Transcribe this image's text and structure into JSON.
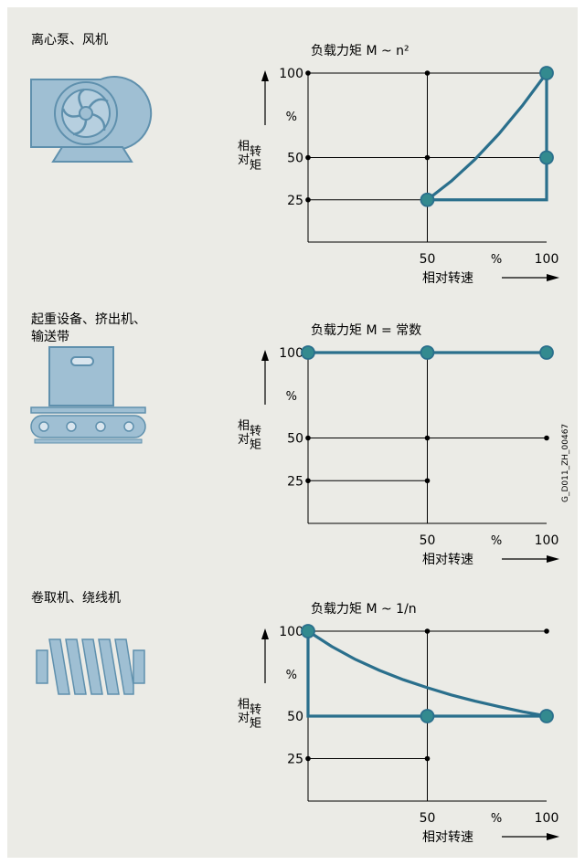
{
  "colors": {
    "background": "#ebebe6",
    "curve": "#2a6f8c",
    "point_fill": "#338a8f",
    "icon_fill": "#9fbfd3",
    "icon_stroke": "#5f90ad",
    "grid": "#000000"
  },
  "doc_id": "G_D011_ZH_00467",
  "sections": [
    {
      "label": "离心泵、风机",
      "icon": "centrifugal-pump-fan-icon",
      "chart_title": "负载力矩 M ~ n²"
    },
    {
      "label": "起重设备、挤出机、\n输送带",
      "icon": "conveyor-belt-icon",
      "chart_title": "负载力矩 M = 常数"
    },
    {
      "label": "卷取机、绕线机",
      "icon": "winder-coil-icon",
      "chart_title": "负载力矩 M ~ 1/n"
    }
  ],
  "chart_data": [
    {
      "type": "line",
      "title": "负载力矩 M ~ n²",
      "xlabel": "相对转速",
      "ylabel": "相对转矩",
      "unit": "%",
      "xlim": [
        0,
        100
      ],
      "ylim": [
        0,
        100
      ],
      "x_ticks": [
        "50",
        "%",
        "100"
      ],
      "y_ticks": [
        "100",
        "%",
        "50",
        "25"
      ],
      "curve": {
        "x": [
          50,
          60,
          70,
          80,
          90,
          100
        ],
        "y": [
          25,
          36,
          49,
          64,
          81,
          100
        ]
      },
      "region_lines": [
        {
          "x": [
            50,
            100,
            100
          ],
          "y": [
            25,
            25,
            100
          ]
        }
      ],
      "points_large": [
        {
          "x": 50,
          "y": 25
        },
        {
          "x": 100,
          "y": 50
        },
        {
          "x": 100,
          "y": 100
        }
      ],
      "points_small": [
        {
          "x": 0,
          "y": 100
        },
        {
          "x": 50,
          "y": 100
        },
        {
          "x": 0,
          "y": 50
        },
        {
          "x": 50,
          "y": 50
        },
        {
          "x": 0,
          "y": 25
        }
      ],
      "grid_h": [
        {
          "y": 100,
          "x": [
            0,
            100
          ]
        },
        {
          "y": 50,
          "x": [
            0,
            100
          ]
        },
        {
          "y": 25,
          "x": [
            0,
            50
          ]
        }
      ],
      "grid_v": [
        {
          "x": 50,
          "y": [
            0,
            100
          ]
        }
      ]
    },
    {
      "type": "line",
      "title": "负载力矩 M = 常数",
      "xlabel": "相对转速",
      "ylabel": "相对转矩",
      "unit": "%",
      "xlim": [
        0,
        100
      ],
      "ylim": [
        0,
        100
      ],
      "x_ticks": [
        "50",
        "%",
        "100"
      ],
      "y_ticks": [
        "100",
        "%",
        "50",
        "25"
      ],
      "curve": {
        "x": [
          0,
          100
        ],
        "y": [
          100,
          100
        ]
      },
      "region_lines": [],
      "points_large": [
        {
          "x": 0,
          "y": 100
        },
        {
          "x": 50,
          "y": 100
        },
        {
          "x": 100,
          "y": 100
        }
      ],
      "points_small": [
        {
          "x": 0,
          "y": 50
        },
        {
          "x": 50,
          "y": 50
        },
        {
          "x": 100,
          "y": 50
        },
        {
          "x": 0,
          "y": 25
        },
        {
          "x": 50,
          "y": 25
        }
      ],
      "grid_h": [
        {
          "y": 50,
          "x": [
            0,
            100
          ]
        },
        {
          "y": 25,
          "x": [
            0,
            50
          ]
        }
      ],
      "grid_v": [
        {
          "x": 50,
          "y": [
            0,
            100
          ]
        }
      ]
    },
    {
      "type": "line",
      "title": "负载力矩 M ~ 1/n",
      "xlabel": "相对转速",
      "ylabel": "相对转矩",
      "unit": "%",
      "xlim": [
        0,
        100
      ],
      "ylim": [
        0,
        100
      ],
      "x_ticks": [
        "50",
        "%",
        "100"
      ],
      "y_ticks": [
        "100",
        "%",
        "50",
        "25"
      ],
      "curve": {
        "x": [
          0,
          10,
          20,
          30,
          40,
          50,
          60,
          70,
          80,
          90,
          100
        ],
        "y": [
          100,
          90.9,
          83.3,
          76.9,
          71.4,
          66.7,
          62.5,
          58.8,
          55.6,
          52.6,
          50
        ]
      },
      "region_lines": [
        {
          "x": [
            0,
            0,
            100
          ],
          "y": [
            100,
            50,
            50
          ]
        }
      ],
      "points_large": [
        {
          "x": 0,
          "y": 100
        },
        {
          "x": 50,
          "y": 50
        },
        {
          "x": 100,
          "y": 50
        }
      ],
      "points_small": [
        {
          "x": 50,
          "y": 100
        },
        {
          "x": 100,
          "y": 100
        },
        {
          "x": 0,
          "y": 25
        },
        {
          "x": 50,
          "y": 25
        }
      ],
      "grid_h": [
        {
          "y": 100,
          "x": [
            0,
            100
          ]
        },
        {
          "y": 25,
          "x": [
            0,
            50
          ]
        }
      ],
      "grid_v": [
        {
          "x": 50,
          "y": [
            0,
            100
          ]
        }
      ]
    }
  ]
}
